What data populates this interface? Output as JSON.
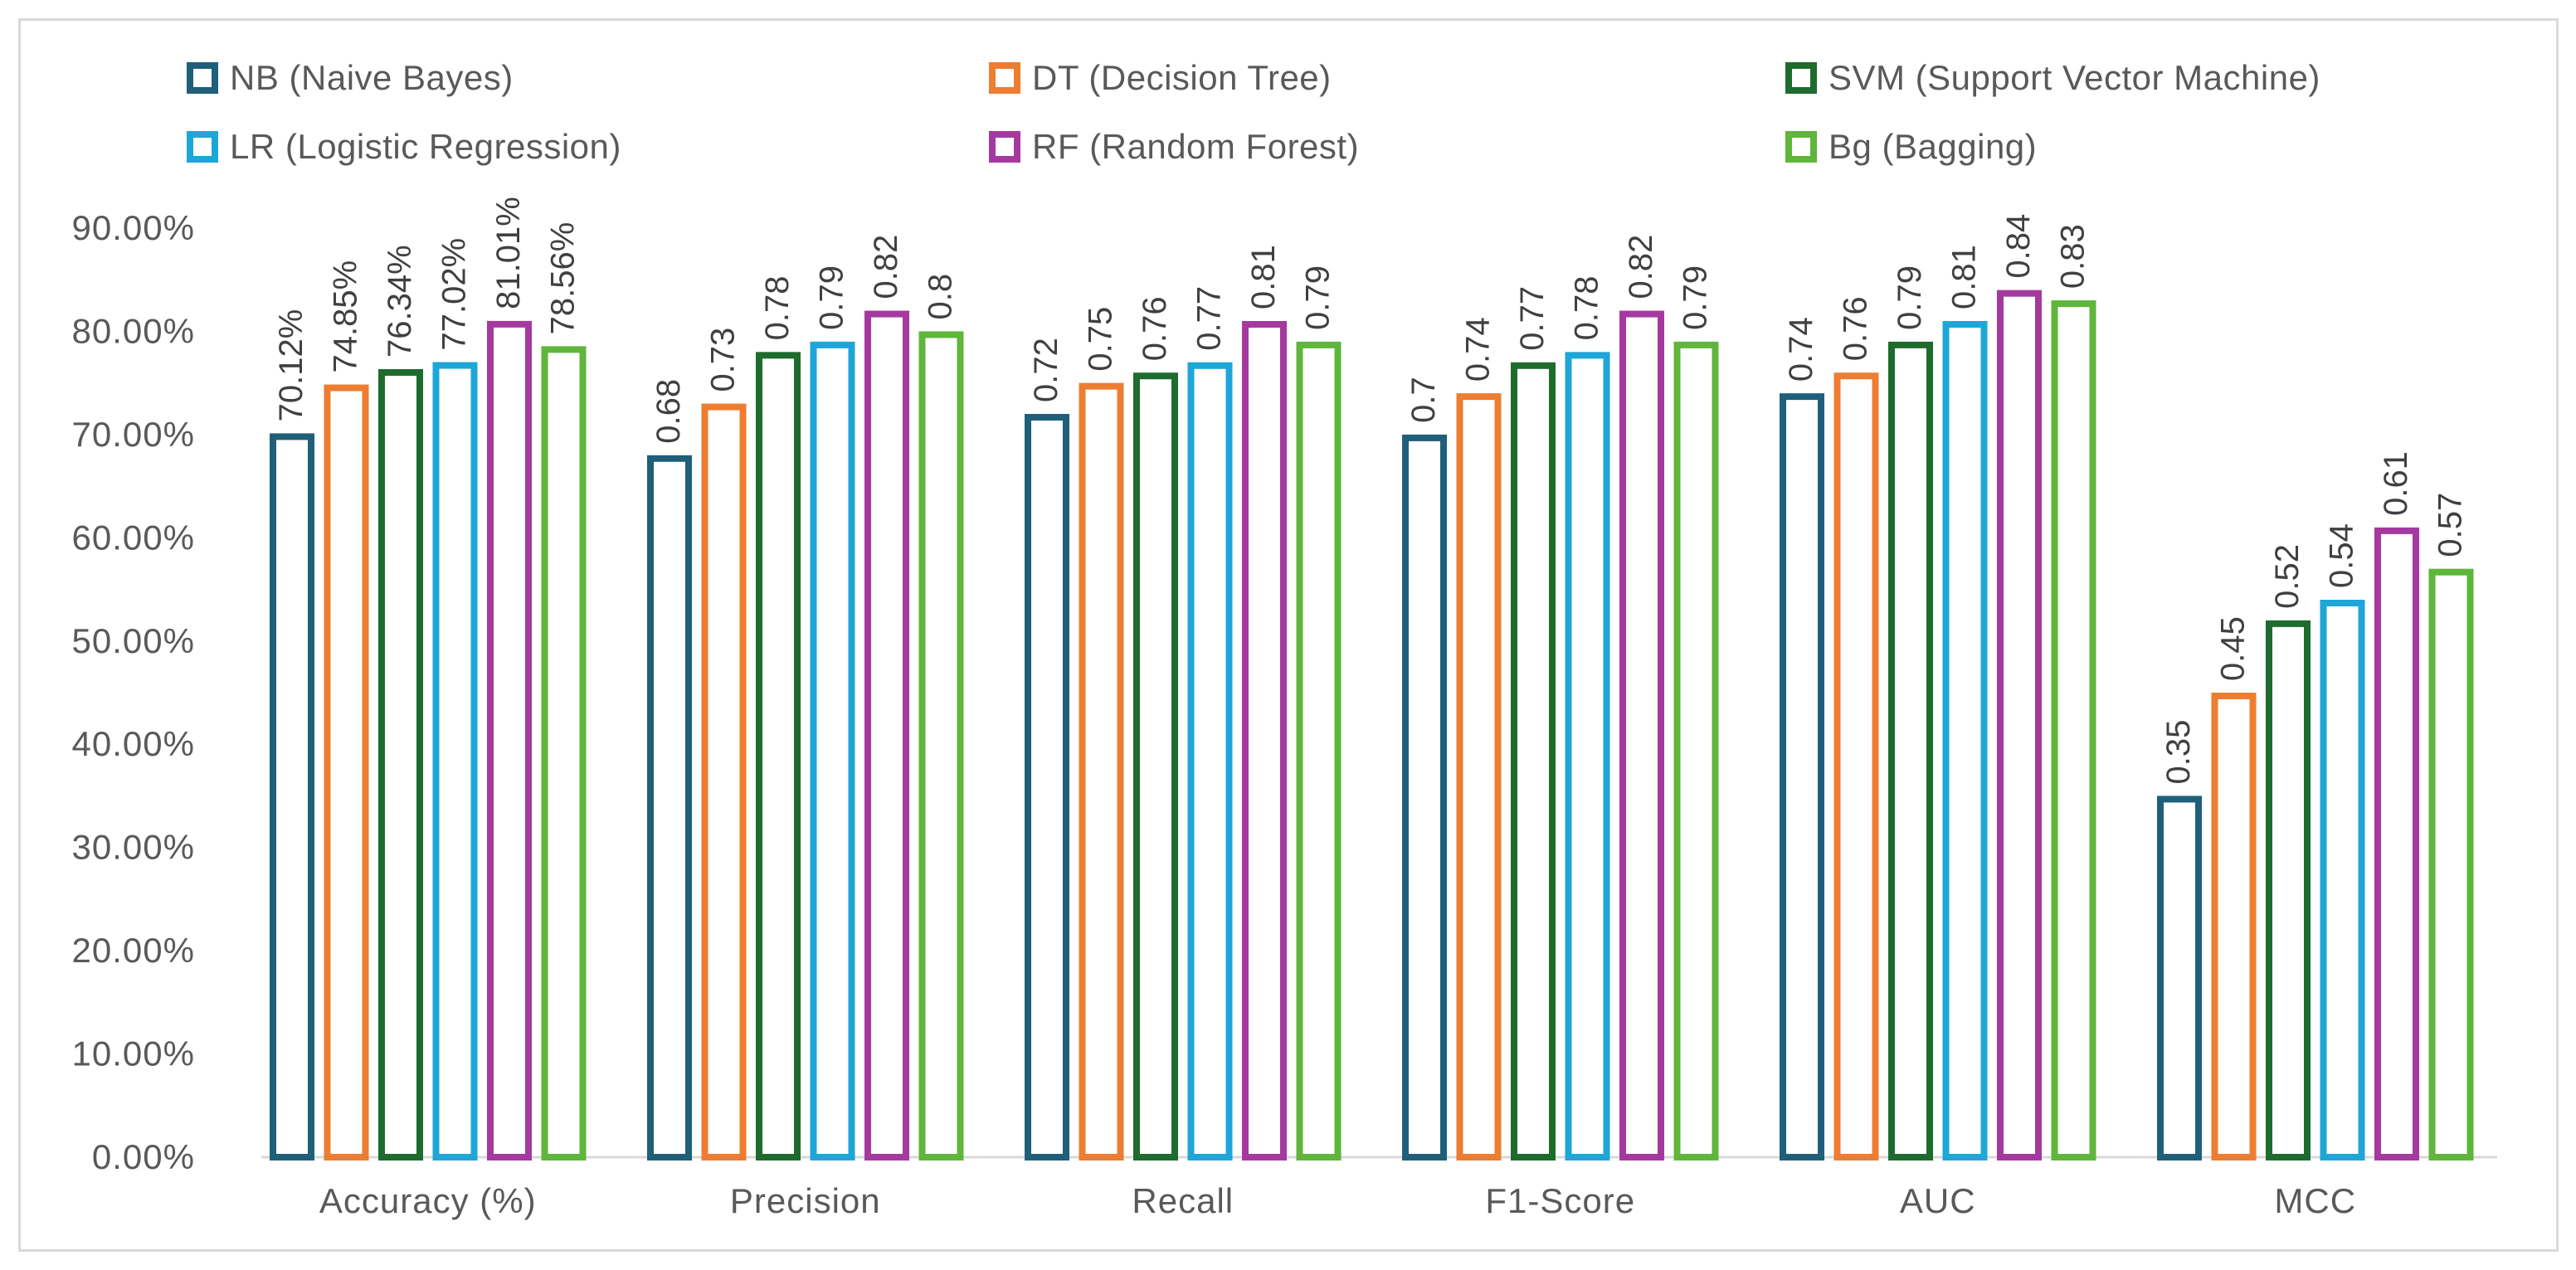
{
  "chart_data": {
    "type": "bar",
    "categories": [
      "Accuracy (%)",
      "Precision",
      "Recall",
      "F1-Score",
      "AUC",
      "MCC"
    ],
    "series": [
      {
        "name": "NB (Naive Bayes)",
        "color": "#1f5f7a",
        "values": [
          0.7012,
          0.68,
          0.72,
          0.7,
          0.74,
          0.35
        ],
        "labels": [
          "70.12%",
          "0.68",
          "0.72",
          "0.7",
          "0.74",
          "0.35"
        ]
      },
      {
        "name": "DT (Decision Tree)",
        "color": "#ed7d31",
        "values": [
          0.7485,
          0.73,
          0.75,
          0.74,
          0.76,
          0.45
        ],
        "labels": [
          "74.85%",
          "0.73",
          "0.75",
          "0.74",
          "0.76",
          "0.45"
        ]
      },
      {
        "name": "SVM (Support Vector Machine)",
        "color": "#1e6b2e",
        "values": [
          0.7634,
          0.78,
          0.76,
          0.77,
          0.79,
          0.52
        ],
        "labels": [
          "76.34%",
          "0.78",
          "0.76",
          "0.77",
          "0.79",
          "0.52"
        ]
      },
      {
        "name": "LR (Logistic Regression)",
        "color": "#1ea6d8",
        "values": [
          0.7702,
          0.79,
          0.77,
          0.78,
          0.81,
          0.54
        ],
        "labels": [
          "77.02%",
          "0.79",
          "0.77",
          "0.78",
          "0.81",
          "0.54"
        ]
      },
      {
        "name": "RF (Random Forest)",
        "color": "#a5399f",
        "values": [
          0.8101,
          0.82,
          0.81,
          0.82,
          0.84,
          0.61
        ],
        "labels": [
          "81.01%",
          "0.82",
          "0.81",
          "0.82",
          "0.84",
          "0.61"
        ]
      },
      {
        "name": "Bg (Bagging)",
        "color": "#5fb63a",
        "values": [
          0.7856,
          0.8,
          0.79,
          0.79,
          0.83,
          0.57
        ],
        "labels": [
          "78.56%",
          "0.8",
          "0.79",
          "0.79",
          "0.83",
          "0.57"
        ]
      }
    ],
    "ylim": [
      0,
      0.9
    ],
    "yticks": [
      0,
      0.1,
      0.2,
      0.3,
      0.4,
      0.5,
      0.6,
      0.7,
      0.8,
      0.9
    ],
    "ytick_labels": [
      "0.00%",
      "10.00%",
      "20.00%",
      "30.00%",
      "40.00%",
      "50.00%",
      "60.00%",
      "70.00%",
      "80.00%",
      "90.00%"
    ],
    "title": "",
    "xlabel": "",
    "ylabel": "",
    "grid": false,
    "legend_position": "top"
  }
}
